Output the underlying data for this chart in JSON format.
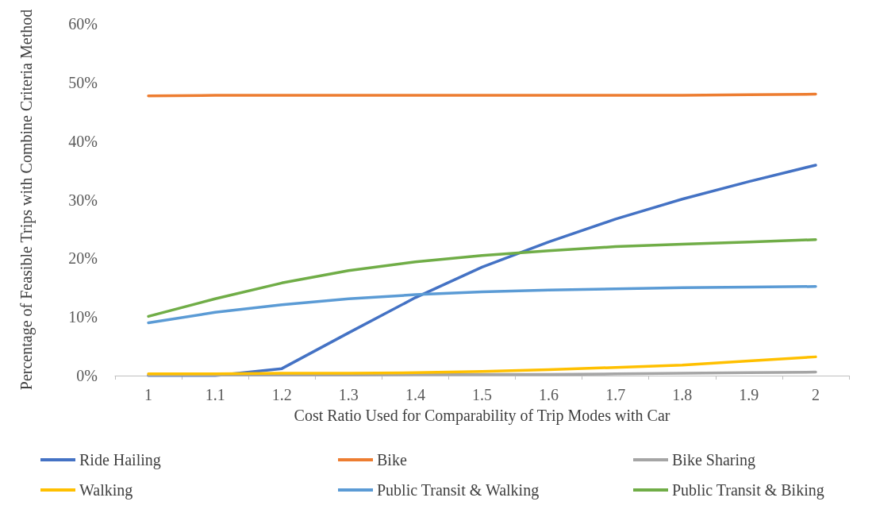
{
  "chart_data": {
    "type": "line",
    "xlabel": "Cost Ratio Used for Comparability of Trip Modes with Car",
    "ylabel": "Percentage of Feasible Trips with Combine Criteria Method",
    "categories": [
      "1",
      "1.1",
      "1.2",
      "1.3",
      "1.4",
      "1.5",
      "1.6",
      "1.7",
      "1.8",
      "1.9",
      "2"
    ],
    "series": [
      {
        "name": "Ride Hailing",
        "color": "#4472c4",
        "values": [
          0,
          0,
          1.2,
          7.3,
          13.3,
          18.5,
          22.8,
          26.7,
          30.1,
          33.1,
          35.9
        ]
      },
      {
        "name": "Bike",
        "color": "#ed7d31",
        "values": [
          47.7,
          47.8,
          47.8,
          47.8,
          47.8,
          47.8,
          47.8,
          47.8,
          47.8,
          47.9,
          48.0
        ]
      },
      {
        "name": "Bike Sharing",
        "color": "#a5a5a5",
        "values": [
          0.1,
          0.1,
          0.1,
          0.1,
          0.2,
          0.2,
          0.2,
          0.3,
          0.4,
          0.5,
          0.6
        ]
      },
      {
        "name": "Walking",
        "color": "#ffc000",
        "values": [
          0.3,
          0.3,
          0.4,
          0.4,
          0.5,
          0.7,
          1.0,
          1.4,
          1.8,
          2.5,
          3.2
        ]
      },
      {
        "name": "Public Transit & Walking",
        "color": "#5b9bd5",
        "values": [
          9.0,
          10.8,
          12.1,
          13.1,
          13.8,
          14.3,
          14.6,
          14.8,
          15.0,
          15.1,
          15.2
        ]
      },
      {
        "name": "Public Transit & Biking",
        "color": "#70ad47",
        "values": [
          10.1,
          13.1,
          15.8,
          17.9,
          19.4,
          20.5,
          21.3,
          22.0,
          22.4,
          22.8,
          23.2
        ]
      }
    ],
    "ylim": [
      0,
      60
    ],
    "yticks": [
      {
        "value": 0,
        "label": "0%"
      },
      {
        "value": 10,
        "label": "10%"
      },
      {
        "value": 20,
        "label": "20%"
      },
      {
        "value": 30,
        "label": "30%"
      },
      {
        "value": 40,
        "label": "40%"
      },
      {
        "value": 50,
        "label": "50%"
      },
      {
        "value": 60,
        "label": "60%"
      }
    ],
    "grid": false,
    "legend": "bottom",
    "marker": "none",
    "line_style": "solid"
  }
}
